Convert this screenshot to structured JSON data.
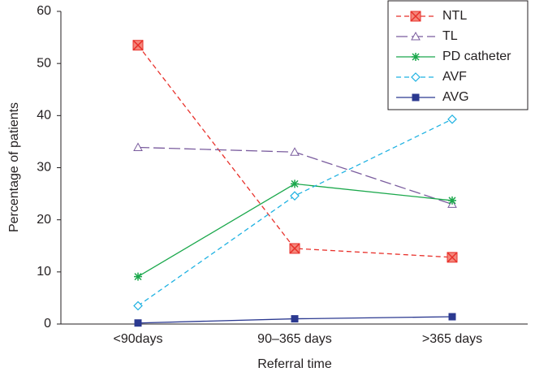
{
  "chart_data": {
    "type": "line",
    "x_label": "Referral time",
    "y_label": "Percentage of patients",
    "categories": [
      "<90days",
      "90–365 days",
      ">365 days"
    ],
    "ylim": [
      0,
      60
    ],
    "yticks": [
      0,
      10,
      20,
      30,
      40,
      50,
      60
    ],
    "legend": "top-right",
    "series": [
      {
        "name": "NTL",
        "color": "#e8312b",
        "dash": "6,4",
        "marker": "x-square",
        "values": [
          53.5,
          14.5,
          12.8
        ]
      },
      {
        "name": "TL",
        "color": "#7a5c9e",
        "dash": "14,5",
        "marker": "triangle",
        "values": [
          33.9,
          33.0,
          23.0
        ]
      },
      {
        "name": "PD catheter",
        "color": "#1ba84c",
        "dash": "none",
        "marker": "asterisk",
        "values": [
          9.1,
          26.9,
          23.7
        ]
      },
      {
        "name": "AVF",
        "color": "#1fb2e2",
        "dash": "6,4",
        "marker": "diamond",
        "values": [
          3.5,
          24.6,
          39.3
        ]
      },
      {
        "name": "AVG",
        "color": "#2b3990",
        "dash": "none",
        "marker": "square",
        "values": [
          0.2,
          1.0,
          1.4
        ]
      }
    ]
  }
}
